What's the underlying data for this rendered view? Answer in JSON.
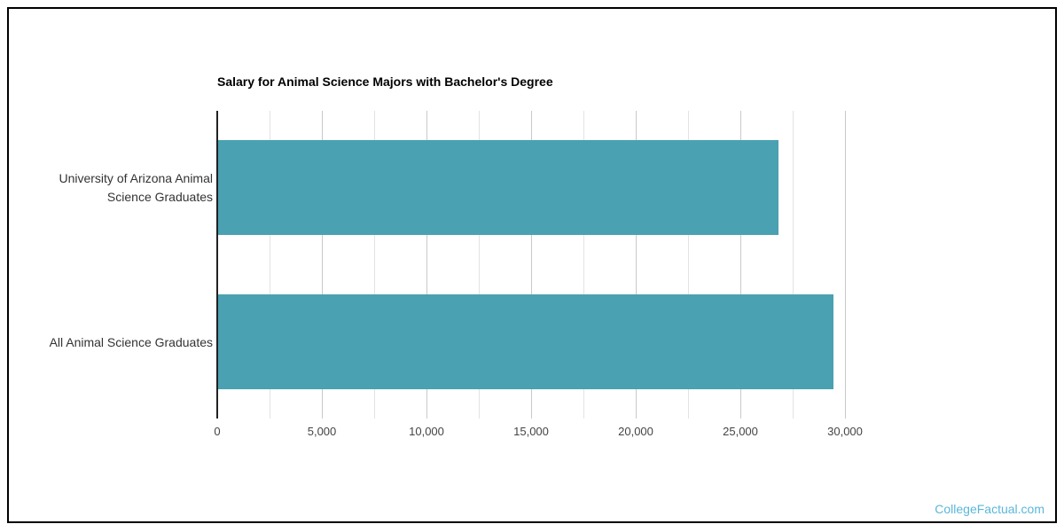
{
  "chart_data": {
    "type": "bar",
    "orientation": "horizontal",
    "title": "Salary for Animal Science Majors with Bachelor's Degree",
    "categories": [
      {
        "label": "University of Arizona Animal Science Graduates",
        "lines": [
          "University of Arizona Animal",
          "Science Graduates"
        ]
      },
      {
        "label": "All Animal Science Graduates",
        "lines": [
          "All Animal Science Graduates"
        ]
      }
    ],
    "values": [
      26800,
      29400
    ],
    "xlabel": "",
    "ylabel": "",
    "xlim": [
      0,
      30000
    ],
    "xticks": [
      0,
      5000,
      10000,
      15000,
      20000,
      25000,
      30000
    ],
    "xtick_labels": [
      "0",
      "5,000",
      "10,000",
      "15,000",
      "20,000",
      "25,000",
      "30,000"
    ],
    "grid_minor_interval": 2500,
    "grid": true,
    "legend": false,
    "colors": {
      "bar": "#4AA1B1",
      "grid_major": "#C9C9C9",
      "grid_minor": "#E3E3E3",
      "axis": "#212121",
      "tick_label": "#444444",
      "category_label": "#333333",
      "title": "#000000"
    }
  },
  "branding": {
    "watermark": "CollegeFactual.com",
    "color": "#5AB7D9"
  },
  "frame": {
    "border_color": "#000000"
  }
}
